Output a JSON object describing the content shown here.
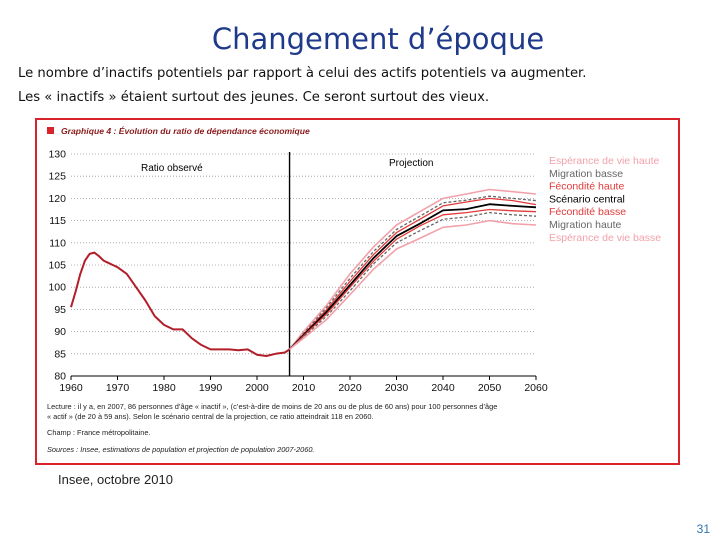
{
  "slide": {
    "title": "Changement d’époque",
    "subtitle_line1": "Le nombre d’inactifs potentiels par rapport à celui des actifs potentiels va augmenter.",
    "subtitle_line2": "Les « inactifs » étaient surtout des jeunes. Ce seront surtout des vieux.",
    "source_note": "Insee, octobre 2010",
    "page_number": "31"
  },
  "colors": {
    "title": "#1f3a8a",
    "frame": "#d9232a",
    "observed": "#b21e2a",
    "life_high": "#f2a1aa",
    "migration": "#666666",
    "fertility": "#e23a3a",
    "central": "#000000",
    "marker": "#d9232a"
  },
  "chart_data": {
    "type": "line",
    "title": "Graphique 4 : Évolution du ratio de dépendance économique",
    "xlim": [
      1960,
      2060
    ],
    "ylim": [
      80,
      130
    ],
    "x_ticks": [
      1960,
      1970,
      1980,
      1990,
      2000,
      2010,
      2020,
      2030,
      2040,
      2050,
      2060
    ],
    "y_ticks": [
      80,
      85,
      90,
      95,
      100,
      105,
      110,
      115,
      120,
      125,
      130
    ],
    "grid": "dotted horizontal",
    "divider_year": 2007,
    "region_labels": {
      "observed": "Ratio observé",
      "projection": "Projection"
    },
    "observed": {
      "name": "Ratio observé",
      "x": [
        1960,
        1961,
        1962,
        1963,
        1964,
        1965,
        1966,
        1967,
        1968,
        1969,
        1970,
        1972,
        1974,
        1976,
        1978,
        1980,
        1982,
        1984,
        1986,
        1988,
        1990,
        1992,
        1994,
        1996,
        1998,
        2000,
        2002,
        2004,
        2006,
        2007
      ],
      "y": [
        95.5,
        99,
        103,
        106,
        107.5,
        107.8,
        107,
        106,
        105.5,
        105,
        104.5,
        103,
        100,
        97,
        93.5,
        91.5,
        90.5,
        90.5,
        88.5,
        87,
        86,
        86,
        86,
        85.8,
        86,
        84.8,
        84.5,
        85,
        85.3,
        86
      ]
    },
    "projections": {
      "x": [
        2007,
        2010,
        2015,
        2020,
        2025,
        2030,
        2035,
        2040,
        2045,
        2050,
        2055,
        2060
      ],
      "series": [
        {
          "name": "Espérance de vie haute",
          "style": "life_high",
          "y": [
            86,
            90,
            96,
            103,
            109,
            114,
            117,
            120,
            121,
            122,
            121.5,
            121
          ]
        },
        {
          "name": "Migration basse",
          "style": "migration_dash",
          "y": [
            86,
            89.6,
            95.5,
            102,
            108,
            113,
            116,
            119,
            119.6,
            120.5,
            120,
            119.5
          ]
        },
        {
          "name": "Fécondité haute",
          "style": "fertility",
          "y": [
            86,
            89.4,
            95,
            101.3,
            107.3,
            112.3,
            115.3,
            118.3,
            119.2,
            120,
            119.5,
            118.6
          ]
        },
        {
          "name": "Scénario central",
          "style": "central",
          "y": [
            86,
            89.2,
            94.5,
            100.5,
            106.5,
            111.5,
            114.3,
            117.3,
            117.6,
            118.7,
            118.3,
            118
          ]
        },
        {
          "name": "Fécondité basse",
          "style": "fertility",
          "y": [
            86,
            89,
            94,
            100,
            105.8,
            110.8,
            113.8,
            116.3,
            116.8,
            117.5,
            117.2,
            117
          ]
        },
        {
          "name": "Migration haute",
          "style": "migration_dash",
          "y": [
            86,
            88.8,
            93.5,
            99.2,
            105.2,
            110,
            112.7,
            115.3,
            115.8,
            116.8,
            116.3,
            116
          ]
        },
        {
          "name": "Espérance de vie basse",
          "style": "life_high",
          "y": [
            86,
            88.5,
            92.8,
            98.3,
            104,
            108.6,
            111,
            113.5,
            114,
            115,
            114.3,
            114
          ]
        }
      ]
    },
    "notes": {
      "lecture_line1": "Lecture : il y a, en 2007, 86 personnes d’âge « inactif », (c’est-à-dire de moins de 20 ans ou de plus de 60 ans) pour 100 personnes d’âge",
      "lecture_line2": "« actif » (de 20 à 59 ans). Selon le scénario central de la projection, ce ratio atteindrait 118 en 2060.",
      "champ": "Champ : France métropolitaine.",
      "sources": "Sources : Insee, estimations de population et projection de population 2007-2060."
    }
  }
}
